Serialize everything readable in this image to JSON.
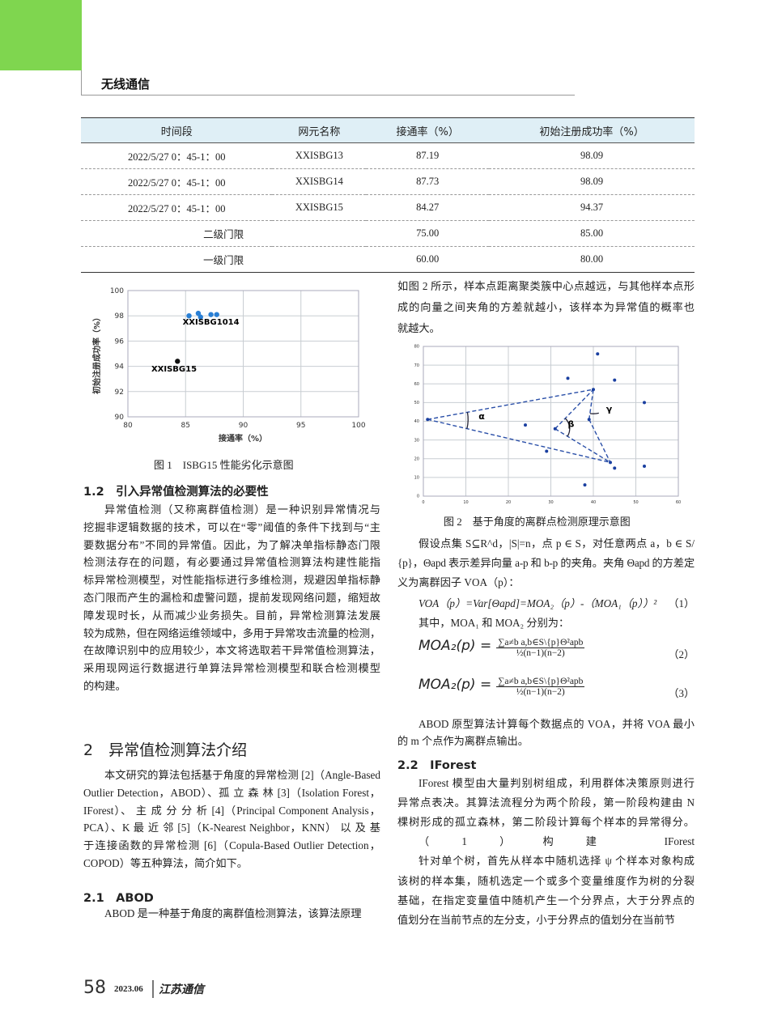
{
  "header": {
    "section": "无线通信"
  },
  "table": {
    "headers": [
      "时间段",
      "网元名称",
      "接通率（%）",
      "初始注册成功率（%）"
    ],
    "rows": [
      [
        "2022/5/27 0：45-1：00",
        "XXISBG13",
        "87.19",
        "98.09"
      ],
      [
        "2022/5/27 0：45-1：00",
        "XXISBG14",
        "87.73",
        "98.09"
      ],
      [
        "2022/5/27 0：45-1：00",
        "XXISBG15",
        "84.27",
        "94.37"
      ]
    ],
    "threshold_rows": [
      [
        "二级门限",
        "75.00",
        "85.00"
      ],
      [
        "一级门限",
        "60.00",
        "80.00"
      ]
    ]
  },
  "chart_data": [
    {
      "type": "scatter",
      "xlabel": "接通率（%）",
      "ylabel": "初始注册成功率（%）",
      "xlim": [
        80,
        100
      ],
      "ylim": [
        90,
        100
      ],
      "xticks": [
        "80",
        "85",
        "90",
        "95",
        "100"
      ],
      "yticks": [
        "90",
        "92",
        "94",
        "96",
        "98",
        "100"
      ],
      "grid": true,
      "series": [
        {
          "color": "#2a7fd4",
          "points": [
            [
              85.3,
              98.0
            ],
            [
              86.1,
              98.2
            ],
            [
              86.3,
              97.9
            ],
            [
              87.2,
              98.1
            ],
            [
              87.7,
              98.1
            ]
          ]
        },
        {
          "color": "#111111",
          "points": [
            [
              84.3,
              94.4
            ]
          ]
        }
      ],
      "annotations": [
        {
          "text": "XXISBG1014",
          "x": 87.2,
          "y": 97.3
        },
        {
          "text": "XXISBG15",
          "x": 84.0,
          "y": 93.6
        }
      ]
    },
    {
      "type": "scatter",
      "xlim": [
        0,
        60
      ],
      "ylim": [
        0,
        80
      ],
      "xticks": [
        "0",
        "10",
        "20",
        "30",
        "40",
        "50",
        "60"
      ],
      "yticks": [
        "0",
        "10",
        "20",
        "30",
        "40",
        "50",
        "60",
        "70",
        "80"
      ],
      "grid": true,
      "series": [
        {
          "color": "#1a3fa0",
          "points": [
            [
              1,
              41
            ],
            [
              24,
              38
            ],
            [
              29,
              24
            ],
            [
              31,
              36
            ],
            [
              34,
              63
            ],
            [
              38,
              6
            ],
            [
              39,
              41
            ],
            [
              40,
              57
            ],
            [
              41,
              76
            ],
            [
              44,
              18
            ],
            [
              45,
              15
            ],
            [
              45,
              62
            ],
            [
              52,
              50
            ],
            [
              52,
              16
            ]
          ]
        }
      ],
      "dashed_lines": [
        [
          [
            1,
            41
          ],
          [
            40,
            57
          ]
        ],
        [
          [
            1,
            41
          ],
          [
            44,
            18
          ]
        ],
        [
          [
            31,
            36
          ],
          [
            40,
            57
          ]
        ],
        [
          [
            31,
            36
          ],
          [
            44,
            18
          ]
        ],
        [
          [
            39,
            41
          ],
          [
            40,
            57
          ]
        ],
        [
          [
            39,
            41
          ],
          [
            44,
            18
          ]
        ]
      ],
      "angle_labels": [
        "α",
        "β",
        "γ"
      ]
    }
  ],
  "fig1_caption": "图 1　ISBG15 性能劣化示意图",
  "fig2_caption": "图 2　基于角度的离群点检测原理示意图",
  "sec12": {
    "title": "1.2　引入异常值检测算法的必要性",
    "lines": [
      "异常值检测（又称离群值检测）是一种识别异常情况与",
      "挖掘非逻辑数据的技术，可以在“零”阈值的条件下找到与“主",
      "要数据分布”不同的异常值。因此，为了解决单指标静态门限",
      "检测法存在的问题，有必要通过异常值检测算法构建性能指",
      "标异常检测模型，对性能指标进行多维检测，规避因单指标静",
      "态门限而产生的漏检和虚警问题，提前发现网络问题，缩短故",
      "障发现时长，从而减少业务损失。目前，异常检测算法发展",
      "较为成熟，但在网络运维领域中，多用于异常攻击流量的检测，",
      "在故障识别中的应用较少，本文将选取若干异常值检测算法，",
      "采用现网运行数据进行单算法异常检测模型和联合检测模型",
      "的构建。"
    ]
  },
  "sec2": {
    "title": "2　异常值检测算法介绍",
    "lines": [
      "本文研究的算法包括基于角度的异常检测 [2]（Angle-Based",
      "Outlier Detection，ABOD）、孤 立 森 林 [3]（Isolation Forest，",
      "IForest）、 主 成 分 分 析 [4]（Principal Component Analysis，",
      "PCA）、K 最 近 邻 [5]（K-Nearest Neighbor，KNN） 以 及 基",
      "于连接函数的异常检测 [6]（Copula-Based Outlier Detection，",
      "COPOD）等五种算法，简介如下。"
    ]
  },
  "sec21": {
    "title": "2.1　ABOD",
    "lines": [
      "ABOD 是一种基于角度的离群值检测算法，该算法原理"
    ]
  },
  "right_intro": [
    "如图 2 所示，样本点距离聚类簇中心点越远，与其他样本点形",
    "成的向量之间夹角的方差就越小，该样本为异常值的概率也",
    "就越大。"
  ],
  "math": {
    "l1": "假设点集 S⊆R^d，|S|=n，点 p ∈ S，对任意两点 a，b ∈ S/",
    "l2": "{p}，Θapd 表示差异向量 a-p 和 b-p 的夹角。夹角 Θapd 的方差定",
    "l3": "义为离群因子 VOA（p）：",
    "eq1": "VOA（p）=Var[Θapd]=MOA₂（p）-（MOA₁（p））²",
    "eq1_no": "（1）",
    "l4": "其中，MOA₁ 和 MOA₂ 分别为：",
    "eq_lhs": "MOA₂(p) =",
    "eq_num": "∑a≠b a,b∈S\\{p}Θ²apb",
    "eq_den": "½(n−1)(n−2)",
    "eq2_no": "（2）",
    "eq3_no": "（3）"
  },
  "abod_out": [
    "ABOD 原型算法计算每个数据点的 VOA，并将 VOA 最小",
    "的 m 个点作为离群点输出。"
  ],
  "sec22": {
    "title": "2.2　IForest",
    "lines": [
      "IForest 模型由大量判别树组成，利用群体决策原则进行",
      "异常点表决。其算法流程分为两个阶段，第一阶段构建由 N",
      "棵树形成的孤立森林，第二阶段计算每个样本的异常得分。",
      "（1）构建 IForest",
      "针对单个树，首先从样本中随机选择 ψ 个样本对象构成",
      "该树的样本集，随机选定一个或多个变量维度作为树的分裂",
      "基础，在指定变量值中随机产生一个分界点，大于分界点的",
      "值划分在当前节点的左分支，小于分界点的值划分在当前节"
    ]
  },
  "footer": {
    "page": "58",
    "issue": "2023.06",
    "journal": "江苏通信"
  }
}
